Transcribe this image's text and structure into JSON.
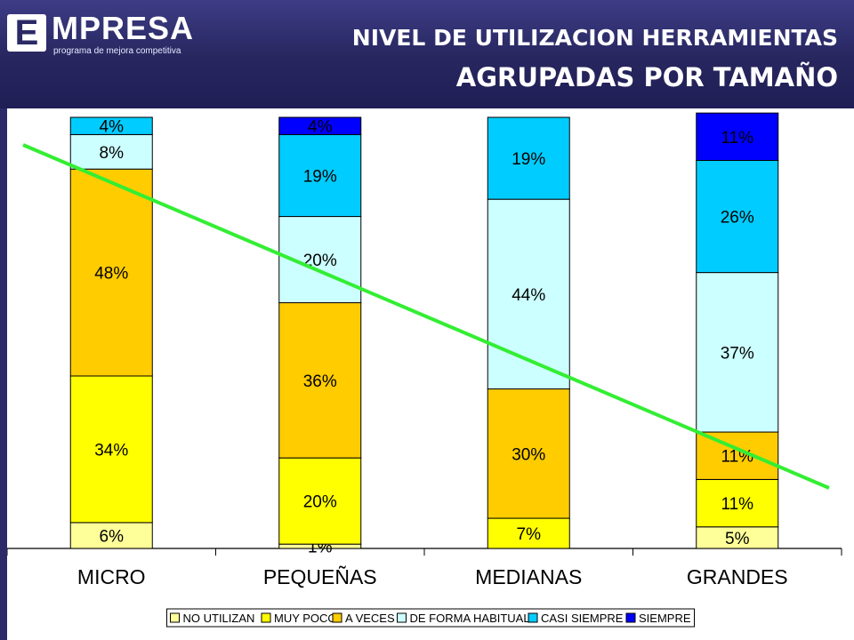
{
  "logo": {
    "letter": "E",
    "word": "MPRESA",
    "tagline": "programa de mejora competitiva"
  },
  "title": {
    "line1": "NIVEL DE UTILIZACION HERRAMIENTAS",
    "line2": "AGRUPADAS POR TAMAÑO"
  },
  "chart_data": {
    "type": "bar",
    "stacked": true,
    "categories": [
      "MICRO",
      "PEQUEÑAS",
      "MEDIANAS",
      "GRANDES"
    ],
    "series": [
      {
        "name": "NO UTILIZAN",
        "color": "#ffff99",
        "values": [
          6,
          1,
          0,
          5
        ],
        "labels": [
          "6%",
          "1%",
          "",
          "5%"
        ]
      },
      {
        "name": "MUY POCO",
        "color": "#ffff00",
        "values": [
          34,
          20,
          7,
          11
        ],
        "labels": [
          "34%",
          "20%",
          "7%",
          "11%"
        ]
      },
      {
        "name": "A VECES",
        "color": "#ffcc00",
        "values": [
          48,
          36,
          30,
          11
        ],
        "labels": [
          "48%",
          "36%",
          "30%",
          "11%"
        ]
      },
      {
        "name": "DE FORMA HABITUAL",
        "color": "#ccffff",
        "values": [
          8,
          20,
          44,
          37
        ],
        "labels": [
          "8%",
          "20%",
          "44%",
          "37%"
        ]
      },
      {
        "name": "CASI SIEMPRE",
        "color": "#00ccff",
        "values": [
          4,
          19,
          19,
          26
        ],
        "labels": [
          "4%",
          "19%",
          "19%",
          "26%"
        ]
      },
      {
        "name": "SIEMPRE",
        "color": "#0000ff",
        "values": [
          0,
          4,
          0,
          11
        ],
        "labels": [
          "",
          "4%",
          "",
          "11%"
        ]
      }
    ],
    "trend_line_color": "#33ee33",
    "legend_position": "bottom"
  }
}
